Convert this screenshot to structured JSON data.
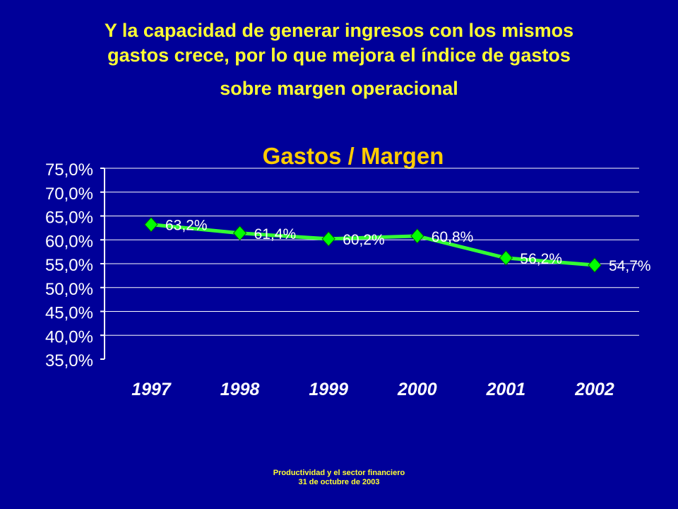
{
  "slide": {
    "title_lines": [
      "Y la capacidad de generar ingresos con los mismos",
      "gastos crece, por lo que mejora el índice de gastos",
      "sobre margen operacional"
    ],
    "footer_lines": [
      "Productividad y el sector financiero",
      "31 de octubre de 2003"
    ]
  },
  "colors": {
    "background": "#000099",
    "title": "#ffff33",
    "chart_title": "#ffcc00",
    "line": "#33ff33",
    "marker": "#00ff00",
    "gridline": "#ffffff",
    "axis_text": "#ffffff",
    "data_label": "#ffffff"
  },
  "chart_data": {
    "type": "line",
    "title": "Gastos / Margen",
    "categories": [
      "1997",
      "1998",
      "1999",
      "2000",
      "2001",
      "2002"
    ],
    "values": [
      63.2,
      61.4,
      60.2,
      60.8,
      56.2,
      54.7
    ],
    "data_labels": [
      "63,2%",
      "61,4%",
      "60,2%",
      "60,8%",
      "56,2%",
      "54,7%"
    ],
    "y_ticks": [
      "35,0%",
      "40,0%",
      "45,0%",
      "50,0%",
      "55,0%",
      "60,0%",
      "65,0%",
      "70,0%",
      "75,0%"
    ],
    "ylim": [
      35,
      75
    ],
    "y_step": 5,
    "grid": true,
    "legend": "none",
    "marker": "diamond"
  }
}
